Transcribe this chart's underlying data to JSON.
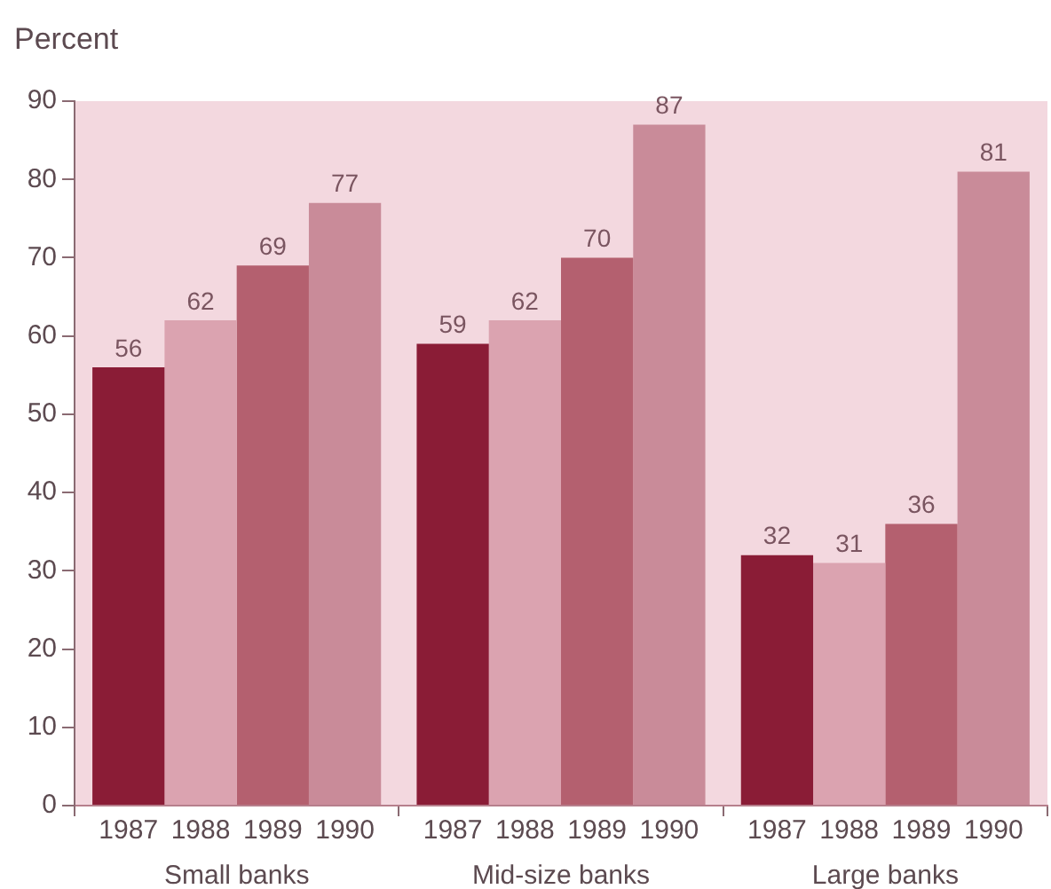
{
  "chart_data": {
    "type": "bar",
    "ylabel": "Percent",
    "categories": [
      "Small banks",
      "Mid-size banks",
      "Large banks"
    ],
    "series": [
      {
        "name": "1987",
        "color": "#8a1c36",
        "values": [
          56,
          59,
          32
        ]
      },
      {
        "name": "1988",
        "color": "#dba3b0",
        "values": [
          62,
          62,
          31
        ]
      },
      {
        "name": "1989",
        "color": "#b4606f",
        "values": [
          69,
          70,
          36
        ]
      },
      {
        "name": "1990",
        "color": "#c98b99",
        "values": [
          77,
          87,
          81
        ]
      }
    ],
    "ylim": [
      0,
      90
    ],
    "yticks": [
      0,
      10,
      20,
      30,
      40,
      50,
      60,
      70,
      80,
      90
    ],
    "grid": false,
    "legend": false,
    "data_labels": true
  }
}
